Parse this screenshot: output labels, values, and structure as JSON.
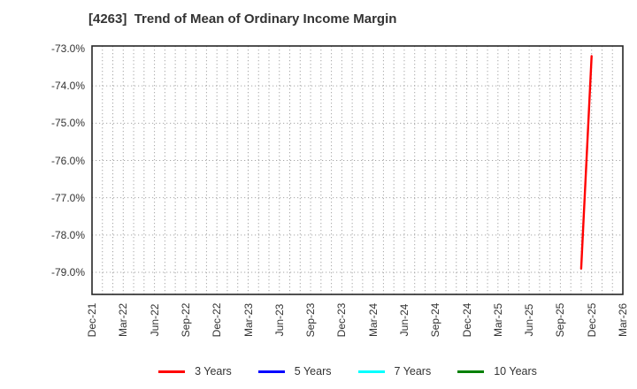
{
  "chart_data": {
    "type": "line",
    "title": "[4263]  Trend of Mean of Ordinary Income Margin",
    "x_tick_labels": [
      "Dec-21",
      "Mar-22",
      "Jun-22",
      "Sep-22",
      "Dec-22",
      "Mar-23",
      "Jun-23",
      "Sep-23",
      "Dec-23",
      "Mar-24",
      "Jun-24",
      "Sep-24",
      "Dec-24",
      "Mar-25",
      "Jun-25",
      "Sep-25",
      "Dec-25",
      "Mar-26"
    ],
    "x_minor_gridlines": "monthly",
    "y_tick_labels": [
      "-73.0%",
      "-74.0%",
      "-75.0%",
      "-76.0%",
      "-77.0%",
      "-78.0%",
      "-79.0%"
    ],
    "y_tick_values": [
      -73,
      -74,
      -75,
      -76,
      -77,
      -78,
      -79
    ],
    "ylim": [
      -79.6,
      -72.9
    ],
    "xlim": [
      "Dec-21",
      "Mar-26"
    ],
    "grid": true,
    "gridline_color": "#a6a6a6",
    "axis_border_color": "#262626",
    "legend_position": "bottom",
    "series": [
      {
        "name": "3 Years",
        "color": "#ff0000",
        "points": [
          {
            "x": "Nov-25",
            "y": -78.9
          },
          {
            "x": "Dec-25",
            "y": -73.2
          }
        ]
      },
      {
        "name": "5 Years",
        "color": "#0000ff",
        "points": []
      },
      {
        "name": "7 Years",
        "color": "#00ffff",
        "points": []
      },
      {
        "name": "10 Years",
        "color": "#008000",
        "points": []
      }
    ]
  }
}
